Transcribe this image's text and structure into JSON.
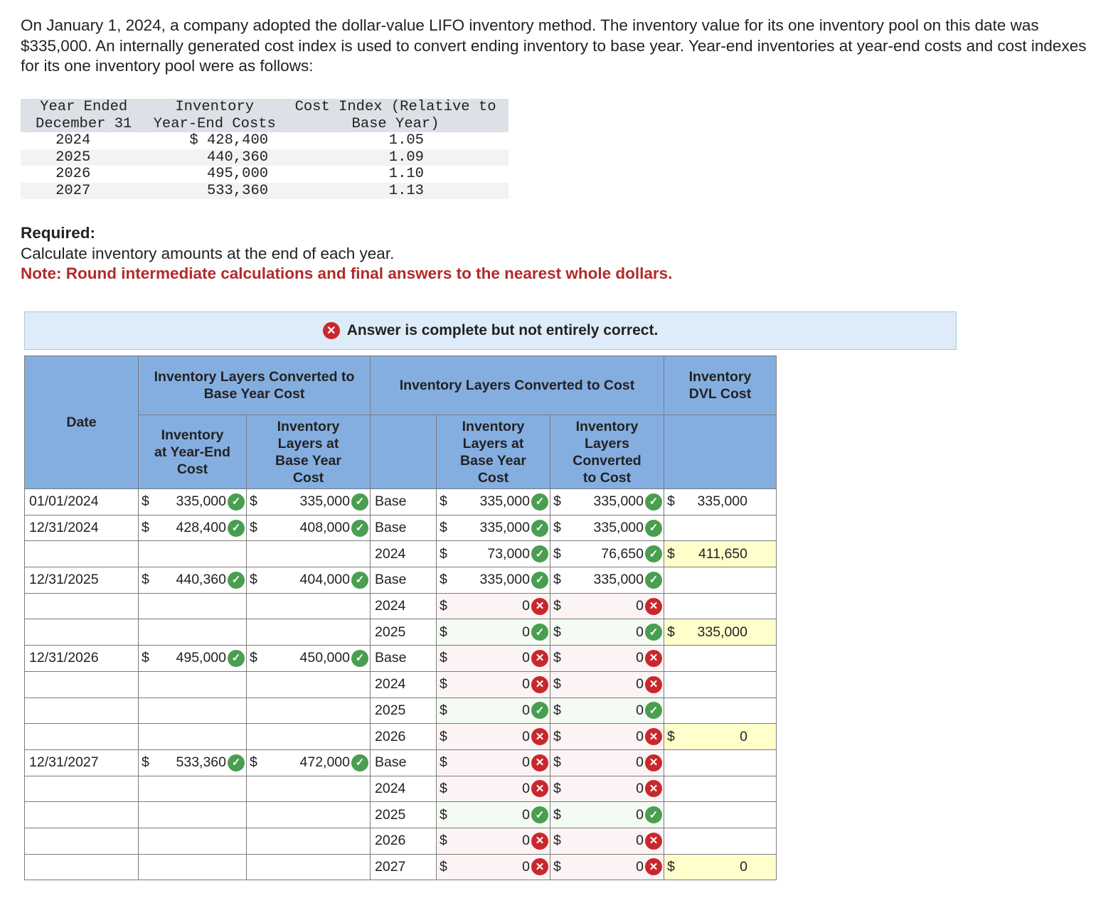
{
  "problem": {
    "intro": "On January 1, 2024, a company adopted the dollar-value LIFO inventory method. The inventory value for its one inventory pool on this date was $335,000. An internally generated cost index is used to convert ending inventory to base year. Year-end inventories at year-end costs and cost indexes for its one inventory pool were as follows:"
  },
  "given_table": {
    "headers": [
      "Year Ended\nDecember 31",
      "Inventory\nYear-End Costs",
      "Cost Index (Relative to\nBase Year)"
    ],
    "header_lines": [
      [
        "Year Ended",
        "December 31"
      ],
      [
        "Inventory",
        "Year-End Costs"
      ],
      [
        "Cost Index (Relative to",
        "Base Year)"
      ]
    ],
    "rows": [
      [
        "2024",
        "$ 428,400",
        "1.05"
      ],
      [
        "2025",
        "440,360",
        "1.09"
      ],
      [
        "2026",
        "495,000",
        "1.10"
      ],
      [
        "2027",
        "533,360",
        "1.13"
      ]
    ]
  },
  "required": {
    "label": "Required:",
    "text": "Calculate inventory amounts at the end of each year.",
    "note": "Note: Round intermediate calculations and final answers to the nearest whole dollars."
  },
  "banner": {
    "text": "Answer is complete but not entirely correct.",
    "icon": "x-circle-icon"
  },
  "answer_table": {
    "group_headers": {
      "date": "Date",
      "base_group": "Inventory Layers Converted to Base Year Cost",
      "cost_group": "Inventory Layers Converted to Cost",
      "dvl": "Inventory DVL Cost"
    },
    "sub_headers": {
      "year_end": "Inventory at Year-End Cost",
      "base_layers": "Inventory Layers at Base Year Cost",
      "cost_base_layers": "Inventory Layers at Base Year Cost",
      "cost_converted": "Inventory Layers Converted to Cost"
    },
    "colors": {
      "header": "#85aee0",
      "correct": "#4a9e50",
      "incorrect": "#c8282d",
      "total_bg": "#ffffcc"
    },
    "rows": [
      {
        "date": "01/01/2024",
        "ye": "335,000",
        "ye_mk": "ok",
        "bl": "335,000",
        "bl_mk": "ok",
        "layer": "Base",
        "lb": "335,000",
        "lb_mk": "ok",
        "lc": "335,000",
        "lc_mk": "ok",
        "dvl": "335,000",
        "dvl_dol": "$",
        "dvl_bg": "white"
      },
      {
        "date": "12/31/2024",
        "ye": "428,400",
        "ye_mk": "ok",
        "bl": "408,000",
        "bl_mk": "ok",
        "layer": "Base",
        "lb": "335,000",
        "lb_mk": "ok",
        "lc": "335,000",
        "lc_mk": "ok",
        "dvl": "",
        "dvl_dol": "",
        "dvl_bg": "white"
      },
      {
        "date": "",
        "ye": "",
        "ye_mk": "",
        "bl": "",
        "bl_mk": "",
        "layer": "2024",
        "lb": "73,000",
        "lb_mk": "ok",
        "lc": "76,650",
        "lc_mk": "ok",
        "dvl": "411,650",
        "dvl_dol": "$",
        "dvl_bg": "yellow"
      },
      {
        "date": "12/31/2025",
        "ye": "440,360",
        "ye_mk": "ok",
        "bl": "404,000",
        "bl_mk": "ok",
        "layer": "Base",
        "lb": "335,000",
        "lb_mk": "ok",
        "lc": "335,000",
        "lc_mk": "ok",
        "dvl": "",
        "dvl_dol": "",
        "dvl_bg": "white"
      },
      {
        "date": "",
        "ye": "",
        "ye_mk": "",
        "bl": "",
        "bl_mk": "",
        "layer": "2024",
        "lb": "0",
        "lb_mk": "bad",
        "lc": "0",
        "lc_mk": "bad",
        "dvl": "",
        "dvl_dol": "",
        "dvl_bg": "white"
      },
      {
        "date": "",
        "ye": "",
        "ye_mk": "",
        "bl": "",
        "bl_mk": "",
        "layer": "2025",
        "lb": "0",
        "lb_mk": "ok",
        "lc": "0",
        "lc_mk": "ok",
        "dvl": "335,000",
        "dvl_dol": "$",
        "dvl_bg": "yellow"
      },
      {
        "date": "12/31/2026",
        "ye": "495,000",
        "ye_mk": "ok",
        "bl": "450,000",
        "bl_mk": "ok",
        "layer": "Base",
        "lb": "0",
        "lb_mk": "bad",
        "lc": "0",
        "lc_mk": "bad",
        "dvl": "",
        "dvl_dol": "",
        "dvl_bg": "white"
      },
      {
        "date": "",
        "ye": "",
        "ye_mk": "",
        "bl": "",
        "bl_mk": "",
        "layer": "2024",
        "lb": "0",
        "lb_mk": "bad",
        "lc": "0",
        "lc_mk": "bad",
        "dvl": "",
        "dvl_dol": "",
        "dvl_bg": "white"
      },
      {
        "date": "",
        "ye": "",
        "ye_mk": "",
        "bl": "",
        "bl_mk": "",
        "layer": "2025",
        "lb": "0",
        "lb_mk": "ok",
        "lc": "0",
        "lc_mk": "ok",
        "dvl": "",
        "dvl_dol": "",
        "dvl_bg": "white"
      },
      {
        "date": "",
        "ye": "",
        "ye_mk": "",
        "bl": "",
        "bl_mk": "",
        "layer": "2026",
        "lb": "0",
        "lb_mk": "bad",
        "lc": "0",
        "lc_mk": "bad",
        "dvl": "0",
        "dvl_dol": "$",
        "dvl_bg": "yellow"
      },
      {
        "date": "12/31/2027",
        "ye": "533,360",
        "ye_mk": "ok",
        "bl": "472,000",
        "bl_mk": "ok",
        "layer": "Base",
        "lb": "0",
        "lb_mk": "bad",
        "lc": "0",
        "lc_mk": "bad",
        "dvl": "",
        "dvl_dol": "",
        "dvl_bg": "white"
      },
      {
        "date": "",
        "ye": "",
        "ye_mk": "",
        "bl": "",
        "bl_mk": "",
        "layer": "2024",
        "lb": "0",
        "lb_mk": "bad",
        "lc": "0",
        "lc_mk": "bad",
        "dvl": "",
        "dvl_dol": "",
        "dvl_bg": "white"
      },
      {
        "date": "",
        "ye": "",
        "ye_mk": "",
        "bl": "",
        "bl_mk": "",
        "layer": "2025",
        "lb": "0",
        "lb_mk": "ok",
        "lc": "0",
        "lc_mk": "ok",
        "dvl": "",
        "dvl_dol": "",
        "dvl_bg": "white"
      },
      {
        "date": "",
        "ye": "",
        "ye_mk": "",
        "bl": "",
        "bl_mk": "",
        "layer": "2026",
        "lb": "0",
        "lb_mk": "bad",
        "lc": "0",
        "lc_mk": "bad",
        "dvl": "",
        "dvl_dol": "",
        "dvl_bg": "white"
      },
      {
        "date": "",
        "ye": "",
        "ye_mk": "",
        "bl": "",
        "bl_mk": "",
        "layer": "2027",
        "lb": "0",
        "lb_mk": "bad",
        "lc": "0",
        "lc_mk": "bad",
        "dvl": "0",
        "dvl_dol": "$",
        "dvl_bg": "yellow"
      }
    ]
  }
}
